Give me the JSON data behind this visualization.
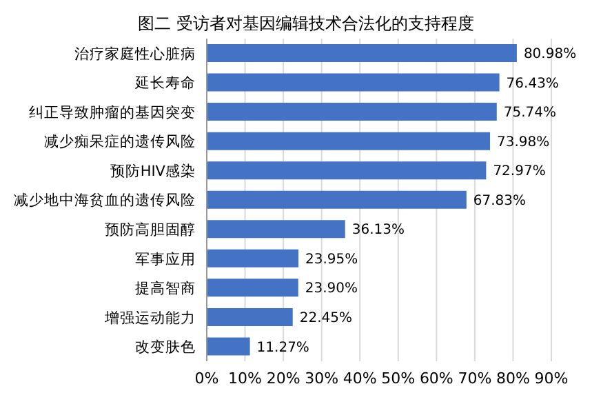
{
  "chart_data": {
    "type": "bar",
    "orientation": "horizontal",
    "title": "图二 受访者对基因编辑技术合法化的支持程度",
    "categories": [
      "治疗家庭性心脏病",
      "延长寿命",
      "纠正导致肿瘤的基因突变",
      "减少痴呆症的遗传风险",
      "预防HIV感染",
      "减少地中海贫血的遗传风险",
      "预防高胆固醇",
      "军事应用",
      "提高智商",
      "增强运动能力",
      "改变肤色"
    ],
    "values": [
      80.98,
      76.43,
      75.74,
      73.98,
      72.97,
      67.83,
      36.13,
      23.95,
      23.9,
      22.45,
      11.27
    ],
    "value_labels": [
      "80.98%",
      "76.43%",
      "75.74%",
      "73.98%",
      "72.97%",
      "67.83%",
      "36.13%",
      "23.95%",
      "23.90%",
      "22.45%",
      "11.27%"
    ],
    "color": "#4472c4",
    "xlim": [
      0,
      90
    ],
    "xticks": [
      {
        "value": 0,
        "label": "0%"
      },
      {
        "value": 10,
        "label": "10%"
      },
      {
        "value": 20,
        "label": "20%"
      },
      {
        "value": 30,
        "label": "30%"
      },
      {
        "value": 40,
        "label": "40%"
      },
      {
        "value": 50,
        "label": "50%"
      },
      {
        "value": 60,
        "label": "60%"
      },
      {
        "value": 70,
        "label": "70%"
      },
      {
        "value": 80,
        "label": "80%"
      },
      {
        "value": 90,
        "label": "90%"
      }
    ],
    "grid": "x",
    "legend": false
  }
}
